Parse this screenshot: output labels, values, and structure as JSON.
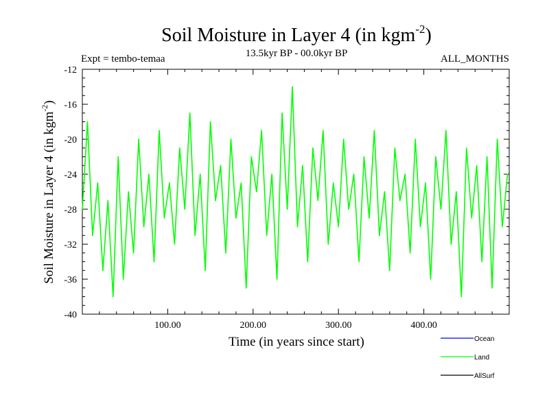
{
  "chart_data": {
    "type": "line",
    "title": "Soil Moisture in Layer 4 (in kgm",
    "title_superscript": "-2",
    "title_suffix": ")",
    "subtitle_left": "Expt = tembo-temaa",
    "subtitle_center": "13.5kyr BP - 00.0kyr BP",
    "subtitle_right": "ALL_MONTHS",
    "xlabel": "Time (in years since start)",
    "ylabel": "Soil Moisture in Layer 4 (in kgm",
    "ylabel_superscript": "-2",
    "ylabel_suffix": ")",
    "xlim": [
      0,
      500
    ],
    "ylim": [
      -40,
      -12
    ],
    "x_ticks": [
      100,
      200,
      300,
      400
    ],
    "x_tick_labels": [
      "100.00",
      "200.00",
      "300.00",
      "400.00"
    ],
    "y_ticks": [
      -40,
      -36,
      -32,
      -28,
      -24,
      -20,
      -16,
      -12
    ],
    "y_tick_labels": [
      "-40",
      "-36",
      "-32",
      "-28",
      "-24",
      "-20",
      "-16",
      "-12"
    ],
    "series": [
      {
        "name": "Ocean",
        "color": "#0000ff",
        "x": [],
        "y": []
      },
      {
        "name": "Land",
        "color": "#00ff00",
        "x": [
          0,
          6,
          12,
          18,
          24,
          30,
          36,
          42,
          48,
          54,
          60,
          66,
          72,
          78,
          84,
          90,
          96,
          102,
          108,
          114,
          120,
          126,
          132,
          138,
          144,
          150,
          156,
          162,
          168,
          174,
          180,
          186,
          192,
          198,
          204,
          210,
          216,
          222,
          228,
          234,
          240,
          246,
          252,
          258,
          264,
          270,
          276,
          282,
          288,
          294,
          300,
          306,
          312,
          318,
          324,
          330,
          336,
          342,
          348,
          354,
          360,
          366,
          372,
          378,
          384,
          390,
          396,
          402,
          408,
          414,
          420,
          426,
          432,
          438,
          444,
          450,
          456,
          462,
          468,
          474,
          480,
          486,
          492,
          498
        ],
        "y": [
          -28,
          -18,
          -31,
          -25,
          -35,
          -27,
          -38,
          -22,
          -36,
          -26,
          -33,
          -20,
          -30,
          -24,
          -34,
          -19,
          -29,
          -25,
          -32,
          -21,
          -28,
          -17,
          -31,
          -24,
          -35,
          -18,
          -27,
          -23,
          -33,
          -20,
          -29,
          -25,
          -37,
          -22,
          -26,
          -19,
          -31,
          -24,
          -36,
          -17,
          -28,
          -14,
          -30,
          -23,
          -34,
          -21,
          -27,
          -19,
          -32,
          -25,
          -30,
          -20,
          -28,
          -24,
          -34,
          -22,
          -29,
          -19,
          -31,
          -26,
          -35,
          -21,
          -27,
          -24,
          -33,
          -20,
          -30,
          -25,
          -36,
          -22,
          -28,
          -19,
          -32,
          -26,
          -38,
          -21,
          -29,
          -23,
          -34,
          -22,
          -37,
          -20,
          -30,
          -24
        ]
      },
      {
        "name": "AllSurf",
        "color": "#000000",
        "x": [],
        "y": []
      }
    ],
    "legend_position": "bottom-right"
  }
}
